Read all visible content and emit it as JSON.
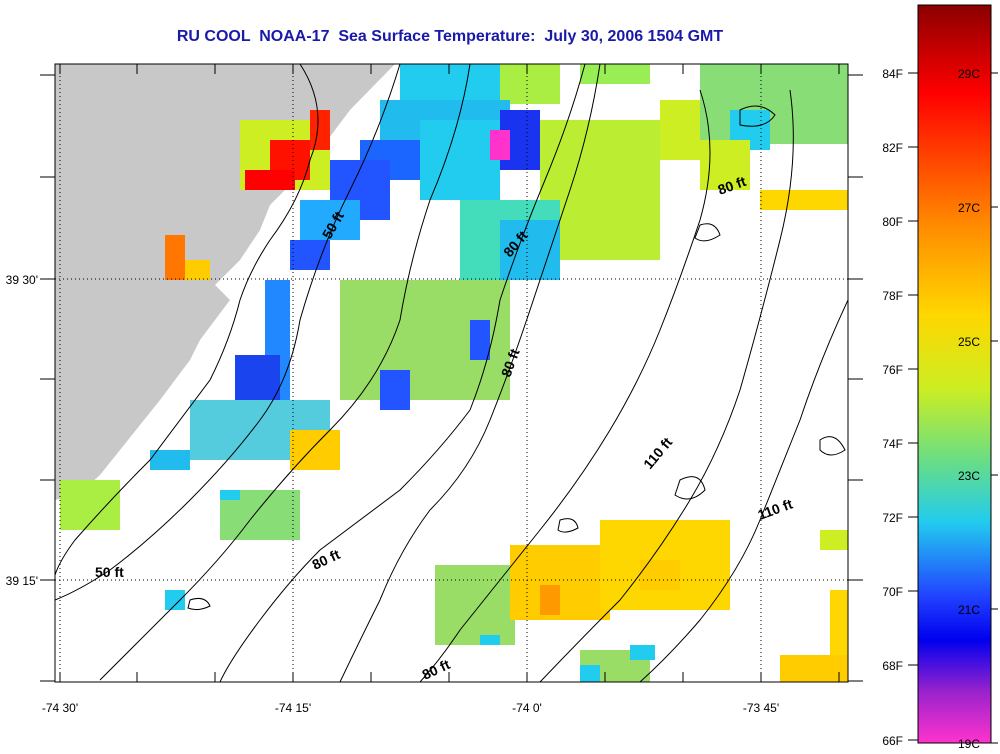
{
  "title": "RU COOL  NOAA-17  Sea Surface Temperature:  July 30, 2006 1504 GMT",
  "map": {
    "x_ticks": [
      "-74 30'",
      "-74 15'",
      "-74 0'",
      "-73 45'"
    ],
    "y_ticks": [
      "39 30'",
      "39 15'"
    ],
    "contour_labels": [
      "50 ft",
      "80 ft",
      "80 ft",
      "80 ft",
      "80 ft",
      "110 ft",
      "110 ft",
      "50 ft"
    ],
    "land_color": "#c8c8c8",
    "grid": "dotted"
  },
  "colorbar": {
    "f_labels": [
      "84F",
      "82F",
      "80F",
      "78F",
      "76F",
      "74F",
      "72F",
      "70F",
      "68F",
      "66F"
    ],
    "c_labels": [
      "29C",
      "27C",
      "25C",
      "23C",
      "21C",
      "19C"
    ],
    "colors": [
      "#8b0000",
      "#ff0000",
      "#ff8c00",
      "#ffd700",
      "#ccee22",
      "#66dd88",
      "#22ccee",
      "#2244ff",
      "#0000ee",
      "#9922cc",
      "#ff33cc"
    ]
  }
}
